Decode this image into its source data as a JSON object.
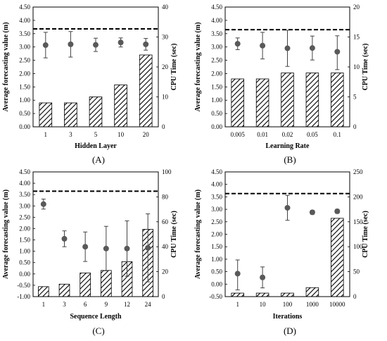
{
  "chart_data": [
    {
      "type": "bar",
      "panel_label": "(A)",
      "categories": [
        "1",
        "3",
        "5",
        "10",
        "20"
      ],
      "xlabel": "Hidden  Layer",
      "ylabel": "Average forecasting value (m)",
      "y2label": "CPU Time  (sec)",
      "ylim": [
        0,
        4.5
      ],
      "y_ticks": [
        "0.00",
        "0.50",
        "1.00",
        "1.50",
        "2.00",
        "2.50",
        "3.00",
        "3.50",
        "4.00",
        "4.50"
      ],
      "y2lim": [
        0,
        40
      ],
      "y2_ticks": [
        "0",
        "10",
        "20",
        "30",
        "40"
      ],
      "reference_line": 3.68,
      "series": [
        {
          "kind": "bar",
          "axis": "right",
          "values": [
            8,
            8,
            10,
            14,
            24
          ]
        },
        {
          "kind": "point",
          "axis": "left",
          "values": [
            3.07,
            3.1,
            3.08,
            3.17,
            3.1
          ],
          "err_low": [
            0.48,
            0.48,
            0.25,
            0.17,
            0.22
          ],
          "err_high": [
            0.48,
            0.48,
            0.25,
            0.17,
            0.22
          ]
        }
      ]
    },
    {
      "type": "bar",
      "panel_label": "(B)",
      "categories": [
        "0.005",
        "0.01",
        "0.02",
        "0.05",
        "0.1"
      ],
      "xlabel": "Learning Rate",
      "ylabel": "Average forecasting value (m)",
      "y2label": "CPU Time  (sec)",
      "ylim": [
        0,
        4.5
      ],
      "y_ticks": [
        "0.00",
        "0.50",
        "1.00",
        "1.50",
        "2.00",
        "2.50",
        "3.00",
        "3.50",
        "4.00",
        "4.50"
      ],
      "y2lim": [
        0,
        20
      ],
      "y2_ticks": [
        "0",
        "5",
        "10",
        "15",
        "20"
      ],
      "reference_line": 3.65,
      "series": [
        {
          "kind": "bar",
          "axis": "right",
          "values": [
            8,
            8,
            9,
            9,
            9
          ]
        },
        {
          "kind": "point",
          "axis": "left",
          "values": [
            3.12,
            3.05,
            2.95,
            2.96,
            2.82
          ],
          "err_low": [
            0.22,
            0.5,
            0.68,
            0.45,
            0.67
          ],
          "err_high": [
            0.22,
            0.5,
            0.68,
            0.45,
            0.6
          ]
        }
      ]
    },
    {
      "type": "bar",
      "panel_label": "(C)",
      "categories": [
        "1",
        "3",
        "6",
        "9",
        "12",
        "24"
      ],
      "xlabel": "Sequence Length",
      "ylabel": "Average forecasting value (m)",
      "y2label": "CPU Time  (sec)",
      "ylim": [
        -1,
        4.5
      ],
      "y_ticks": [
        "-1.00",
        "-0.50",
        "0.00",
        "0.50",
        "1.00",
        "1.50",
        "2.00",
        "2.50",
        "3.00",
        "3.50",
        "4.00",
        "4.50"
      ],
      "y2lim": [
        0,
        100
      ],
      "y2_ticks": [
        "0",
        "20",
        "40",
        "60",
        "80",
        "100"
      ],
      "reference_line": 3.65,
      "series": [
        {
          "kind": "bar",
          "axis": "right",
          "values": [
            8,
            10,
            19,
            21,
            28,
            54
          ]
        },
        {
          "kind": "point",
          "axis": "left",
          "values": [
            3.08,
            1.55,
            1.2,
            1.12,
            1.12,
            1.15
          ],
          "err_low": [
            0.22,
            0.35,
            0.65,
            0.98,
            1.22,
            1.5
          ],
          "err_high": [
            0.22,
            0.35,
            0.65,
            0.98,
            1.22,
            1.5
          ]
        }
      ]
    },
    {
      "type": "bar",
      "panel_label": "(D)",
      "categories": [
        "1",
        "10",
        "100",
        "1000",
        "10000"
      ],
      "xlabel": "Iterations",
      "ylabel": "Average forecasting value (m)",
      "y2label": "CPU Time  (sec)",
      "ylim": [
        -0.5,
        4.5
      ],
      "y_ticks": [
        "-0.50",
        "0.00",
        "0.50",
        "1.00",
        "1.50",
        "2.00",
        "2.50",
        "3.00",
        "3.50",
        "4.00",
        "4.50"
      ],
      "y2lim": [
        0,
        250
      ],
      "y2_ticks": [
        "0",
        "50",
        "100",
        "150",
        "200",
        "250"
      ],
      "reference_line": 3.63,
      "series": [
        {
          "kind": "bar",
          "axis": "right",
          "values": [
            7,
            7,
            7,
            18,
            157
          ]
        },
        {
          "kind": "point",
          "axis": "left",
          "values": [
            0.42,
            0.27,
            3.06,
            2.88,
            2.92
          ],
          "err_low": [
            0.65,
            0.42,
            0.5,
            0.08,
            0.08
          ],
          "err_high": [
            0.55,
            0.42,
            0.5,
            0.08,
            0.08
          ]
        }
      ]
    }
  ]
}
